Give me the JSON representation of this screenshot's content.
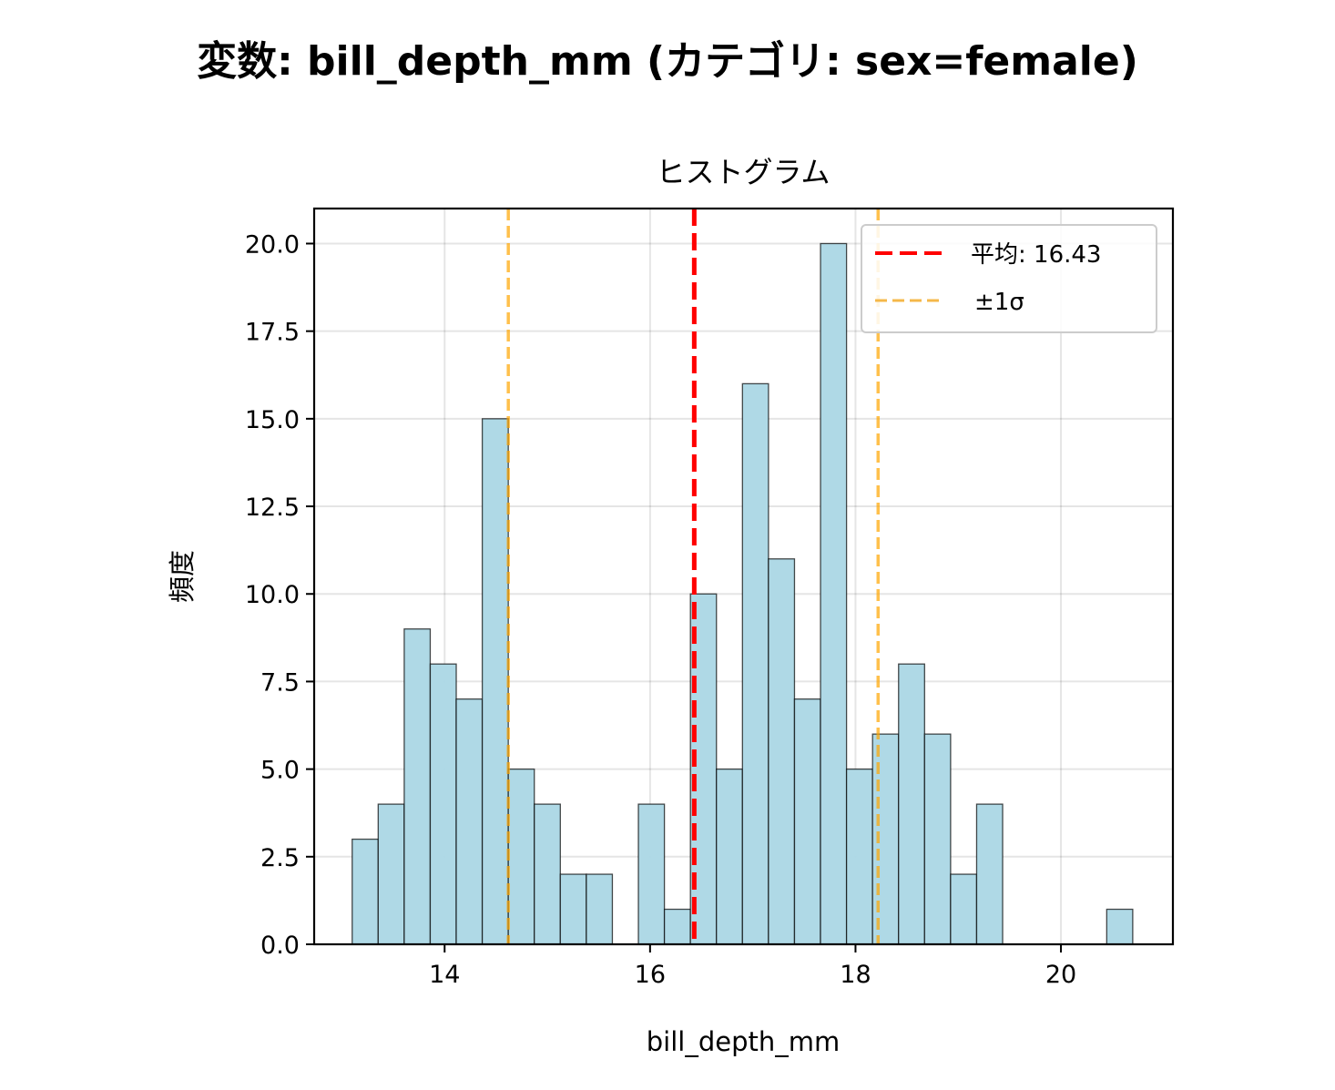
{
  "figure": {
    "suptitle": "変数: bill_depth_mm (カテゴリ: sex=female)"
  },
  "chart_data": {
    "type": "bar",
    "title": "ヒストグラム",
    "xlabel": "bill_depth_mm",
    "ylabel": "頻度",
    "xlim": [
      12.73,
      21.09
    ],
    "ylim": [
      0,
      21
    ],
    "xticks": [
      14,
      16,
      18,
      20
    ],
    "xtick_labels": [
      "14",
      "16",
      "18",
      "20"
    ],
    "yticks": [
      0,
      2.5,
      5,
      7.5,
      10,
      12.5,
      15,
      17.5,
      20
    ],
    "ytick_labels": [
      "0.0",
      "2.5",
      "5.0",
      "7.5",
      "10.0",
      "12.5",
      "15.0",
      "17.5",
      "20.0"
    ],
    "grid": true,
    "bin_start": 13.1,
    "bin_width": 0.2533,
    "counts": [
      3,
      4,
      9,
      8,
      7,
      15,
      5,
      4,
      2,
      2,
      0,
      4,
      1,
      10,
      5,
      16,
      11,
      7,
      20,
      5,
      6,
      8,
      6,
      2,
      4,
      0,
      0,
      0,
      0,
      1
    ],
    "bar_color": "#add8e6",
    "bar_edge_color": "#000000",
    "mean": 16.43,
    "std_lower": 14.62,
    "std_upper": 18.22,
    "mean_color": "#ff0000",
    "std_color": "#ffa500",
    "legend": {
      "position": "upper right",
      "entries": [
        {
          "label": "平均: 16.43",
          "color": "#ff0000",
          "style": "dashed"
        },
        {
          "label": "±1σ",
          "color": "#f5b84a",
          "style": "dashed"
        }
      ]
    }
  }
}
